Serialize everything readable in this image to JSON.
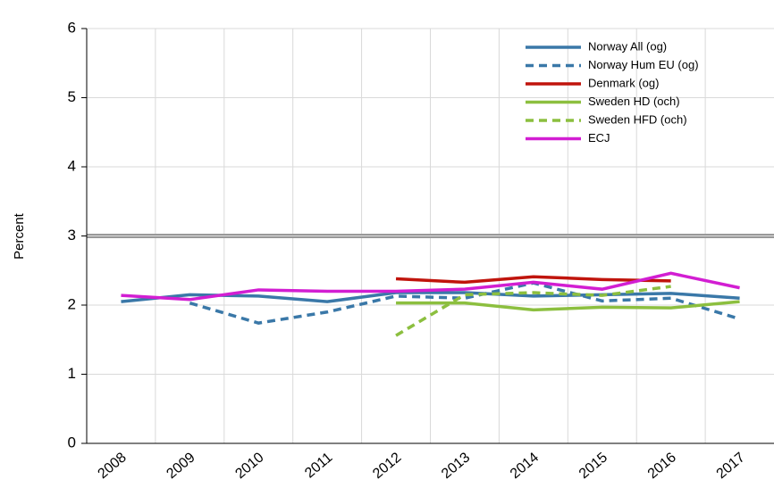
{
  "chart_data": {
    "type": "line",
    "y_label": "Percent",
    "categories": [
      "2008",
      "2009",
      "2010",
      "2011",
      "2012",
      "2013",
      "2014",
      "2015",
      "2016",
      "2017"
    ],
    "series": [
      {
        "name": "Norway All (og)",
        "color": "#3a78a8",
        "dash": false,
        "values": [
          2.05,
          2.15,
          2.13,
          2.05,
          2.18,
          2.18,
          2.13,
          2.15,
          2.17,
          2.1
        ]
      },
      {
        "name": "Norway Hum EU (og)",
        "color": "#3a78a8",
        "dash": true,
        "values": [
          null,
          2.03,
          1.74,
          1.9,
          2.13,
          2.1,
          2.32,
          2.06,
          2.1,
          1.8
        ]
      },
      {
        "name": "Denmark (og)",
        "color": "#c0140c",
        "dash": false,
        "values": [
          null,
          null,
          null,
          null,
          2.38,
          2.33,
          2.41,
          2.37,
          2.35,
          null
        ]
      },
      {
        "name": "Sweden HD (och)",
        "color": "#8cbf3f",
        "dash": false,
        "values": [
          null,
          null,
          null,
          null,
          2.03,
          2.03,
          1.93,
          1.97,
          1.96,
          2.05
        ]
      },
      {
        "name": "Sweden HFD (och)",
        "color": "#8cbf3f",
        "dash": true,
        "values": [
          null,
          null,
          null,
          null,
          1.56,
          2.15,
          2.18,
          2.14,
          2.27,
          null
        ]
      },
      {
        "name": "ECJ",
        "color": "#d21ed2",
        "dash": false,
        "values": [
          2.14,
          2.08,
          2.22,
          2.2,
          2.2,
          2.23,
          2.33,
          2.23,
          2.46,
          2.25
        ]
      }
    ],
    "reference_line": 3,
    "ylim": [
      0,
      6
    ],
    "yticks": [
      0,
      1,
      2,
      3,
      4,
      5,
      6
    ],
    "grid": true,
    "legend": "upper right"
  }
}
